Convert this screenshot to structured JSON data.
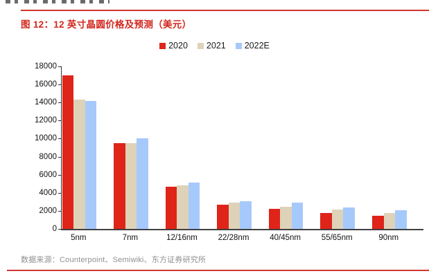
{
  "header": {
    "figure_title": "图 12：12 英寸晶圆价格及预测（美元）"
  },
  "accent": {
    "title_color": "#d3261d",
    "rule_color": "#cd352c"
  },
  "chart_data": {
    "type": "bar",
    "title": "12 英寸晶圆价格及预测（美元）",
    "categories": [
      "5nm",
      "7nm",
      "12/16nm",
      "22/28nm",
      "40/45nm",
      "55/65nm",
      "90nm"
    ],
    "series": [
      {
        "name": "2020",
        "color": "#df2419",
        "values": [
          17000,
          9500,
          4650,
          2650,
          2250,
          1800,
          1450
        ]
      },
      {
        "name": "2021",
        "color": "#ded2b9",
        "values": [
          14300,
          9500,
          4850,
          2900,
          2450,
          2150,
          1800
        ]
      },
      {
        "name": "2022E",
        "color": "#a6c9fc",
        "values": [
          14200,
          10000,
          5100,
          3100,
          2900,
          2400,
          2050
        ]
      }
    ],
    "xlabel": "",
    "ylabel": "",
    "ylim": [
      0,
      18000
    ],
    "ytick_step": 2000,
    "grid": false,
    "legend_position": "top"
  },
  "footer": {
    "source_text": "数据来源：Counterpoint、Semiwiki、东方证券研究所"
  }
}
